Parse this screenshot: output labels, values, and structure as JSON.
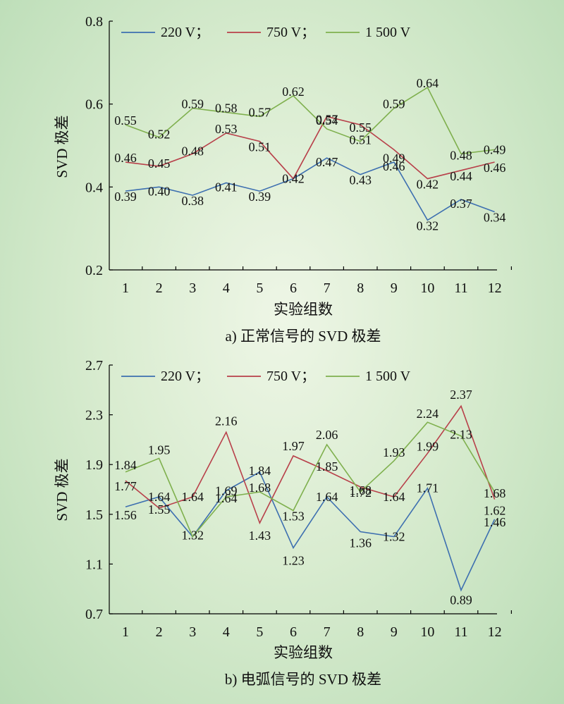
{
  "colors": {
    "220V": "#3d6fb0",
    "750V": "#b8404a",
    "1500V": "#7fb04e"
  },
  "chart_data": [
    {
      "type": "line",
      "caption": "a) 正常信号的 SVD 极差",
      "xlabel": "实验组数",
      "ylabel": "SVD 极差",
      "categories": [
        "1",
        "2",
        "3",
        "4",
        "5",
        "6",
        "7",
        "8",
        "9",
        "10",
        "11",
        "12"
      ],
      "ylim": [
        0.2,
        0.8
      ],
      "yticks": [
        "0.2",
        "0.4",
        "0.6",
        "0.8"
      ],
      "legend": {
        "placement": "top",
        "labels": [
          "220 V；",
          "750 V；",
          "1 500 V"
        ]
      },
      "series": [
        {
          "name": "220 V",
          "color_key": "220V",
          "values": [
            0.39,
            0.4,
            0.38,
            0.41,
            0.39,
            0.42,
            0.47,
            0.43,
            0.46,
            0.32,
            0.37,
            0.34
          ],
          "labels": [
            "0.39",
            "0.40",
            "0.38",
            "0.41",
            "0.39",
            "0.42",
            "0.47",
            "0.43",
            "0.46",
            "0.32",
            "0.37",
            "0.34"
          ]
        },
        {
          "name": "750 V",
          "color_key": "750V",
          "values": [
            0.46,
            0.45,
            0.48,
            0.53,
            0.51,
            0.42,
            0.57,
            0.55,
            0.49,
            0.42,
            0.44,
            0.46
          ],
          "labels": [
            "0.46",
            "0.45",
            "0.48",
            "0.53",
            "0.51",
            "",
            "0.57",
            "0.55",
            "0.49",
            "0.42",
            "0.44",
            "0.46"
          ]
        },
        {
          "name": "1 500 V",
          "color_key": "1500V",
          "values": [
            0.55,
            0.52,
            0.59,
            0.58,
            0.57,
            0.62,
            0.54,
            0.51,
            0.59,
            0.64,
            0.48,
            0.49
          ],
          "labels": [
            "0.55",
            "0.52",
            "0.59",
            "0.58",
            "0.57",
            "0.62",
            "0.54",
            "0.51",
            "0.59",
            "0.64",
            "0.48",
            "0.49"
          ]
        }
      ]
    },
    {
      "type": "line",
      "caption": "b) 电弧信号的 SVD 极差",
      "xlabel": "实验组数",
      "ylabel": "SVD 极差",
      "categories": [
        "1",
        "2",
        "3",
        "4",
        "5",
        "6",
        "7",
        "8",
        "9",
        "10",
        "11",
        "12"
      ],
      "ylim": [
        0.7,
        2.7
      ],
      "yticks": [
        "0.7",
        "1.1",
        "1.5",
        "1.9",
        "2.3",
        "2.7"
      ],
      "legend": {
        "placement": "top",
        "labels": [
          "220 V；",
          "750 V；",
          "1 500 V"
        ]
      },
      "series": [
        {
          "name": "220 V",
          "color_key": "220V",
          "values": [
            1.56,
            1.64,
            1.32,
            1.69,
            1.84,
            1.23,
            1.64,
            1.36,
            1.32,
            1.71,
            0.89,
            1.46
          ],
          "labels": [
            "1.56",
            "1.64",
            "1.32",
            "1.69",
            "1.84",
            "1.23",
            "1.64",
            "1.36",
            "1.32",
            "1.71",
            "0.89",
            "1.46"
          ]
        },
        {
          "name": "750 V",
          "color_key": "750V",
          "values": [
            1.77,
            1.55,
            1.64,
            2.16,
            1.43,
            1.97,
            1.85,
            1.72,
            1.64,
            1.99,
            2.37,
            1.62
          ],
          "labels": [
            "1.77",
            "1.55",
            "1.64",
            "2.16",
            "1.43",
            "1.97",
            "1.85",
            "1.72",
            "1.64",
            "1.99",
            "2.37",
            "1.62"
          ]
        },
        {
          "name": "1 500 V",
          "color_key": "1500V",
          "values": [
            1.84,
            1.95,
            1.32,
            1.64,
            1.68,
            1.53,
            2.06,
            1.68,
            1.93,
            2.24,
            2.13,
            1.68
          ],
          "labels": [
            "1.84",
            "1.95",
            "",
            "1.64",
            "1.68",
            "1.53",
            "2.06",
            "1.68",
            "1.93",
            "2.24",
            "2.13",
            "1.68"
          ]
        }
      ]
    }
  ]
}
